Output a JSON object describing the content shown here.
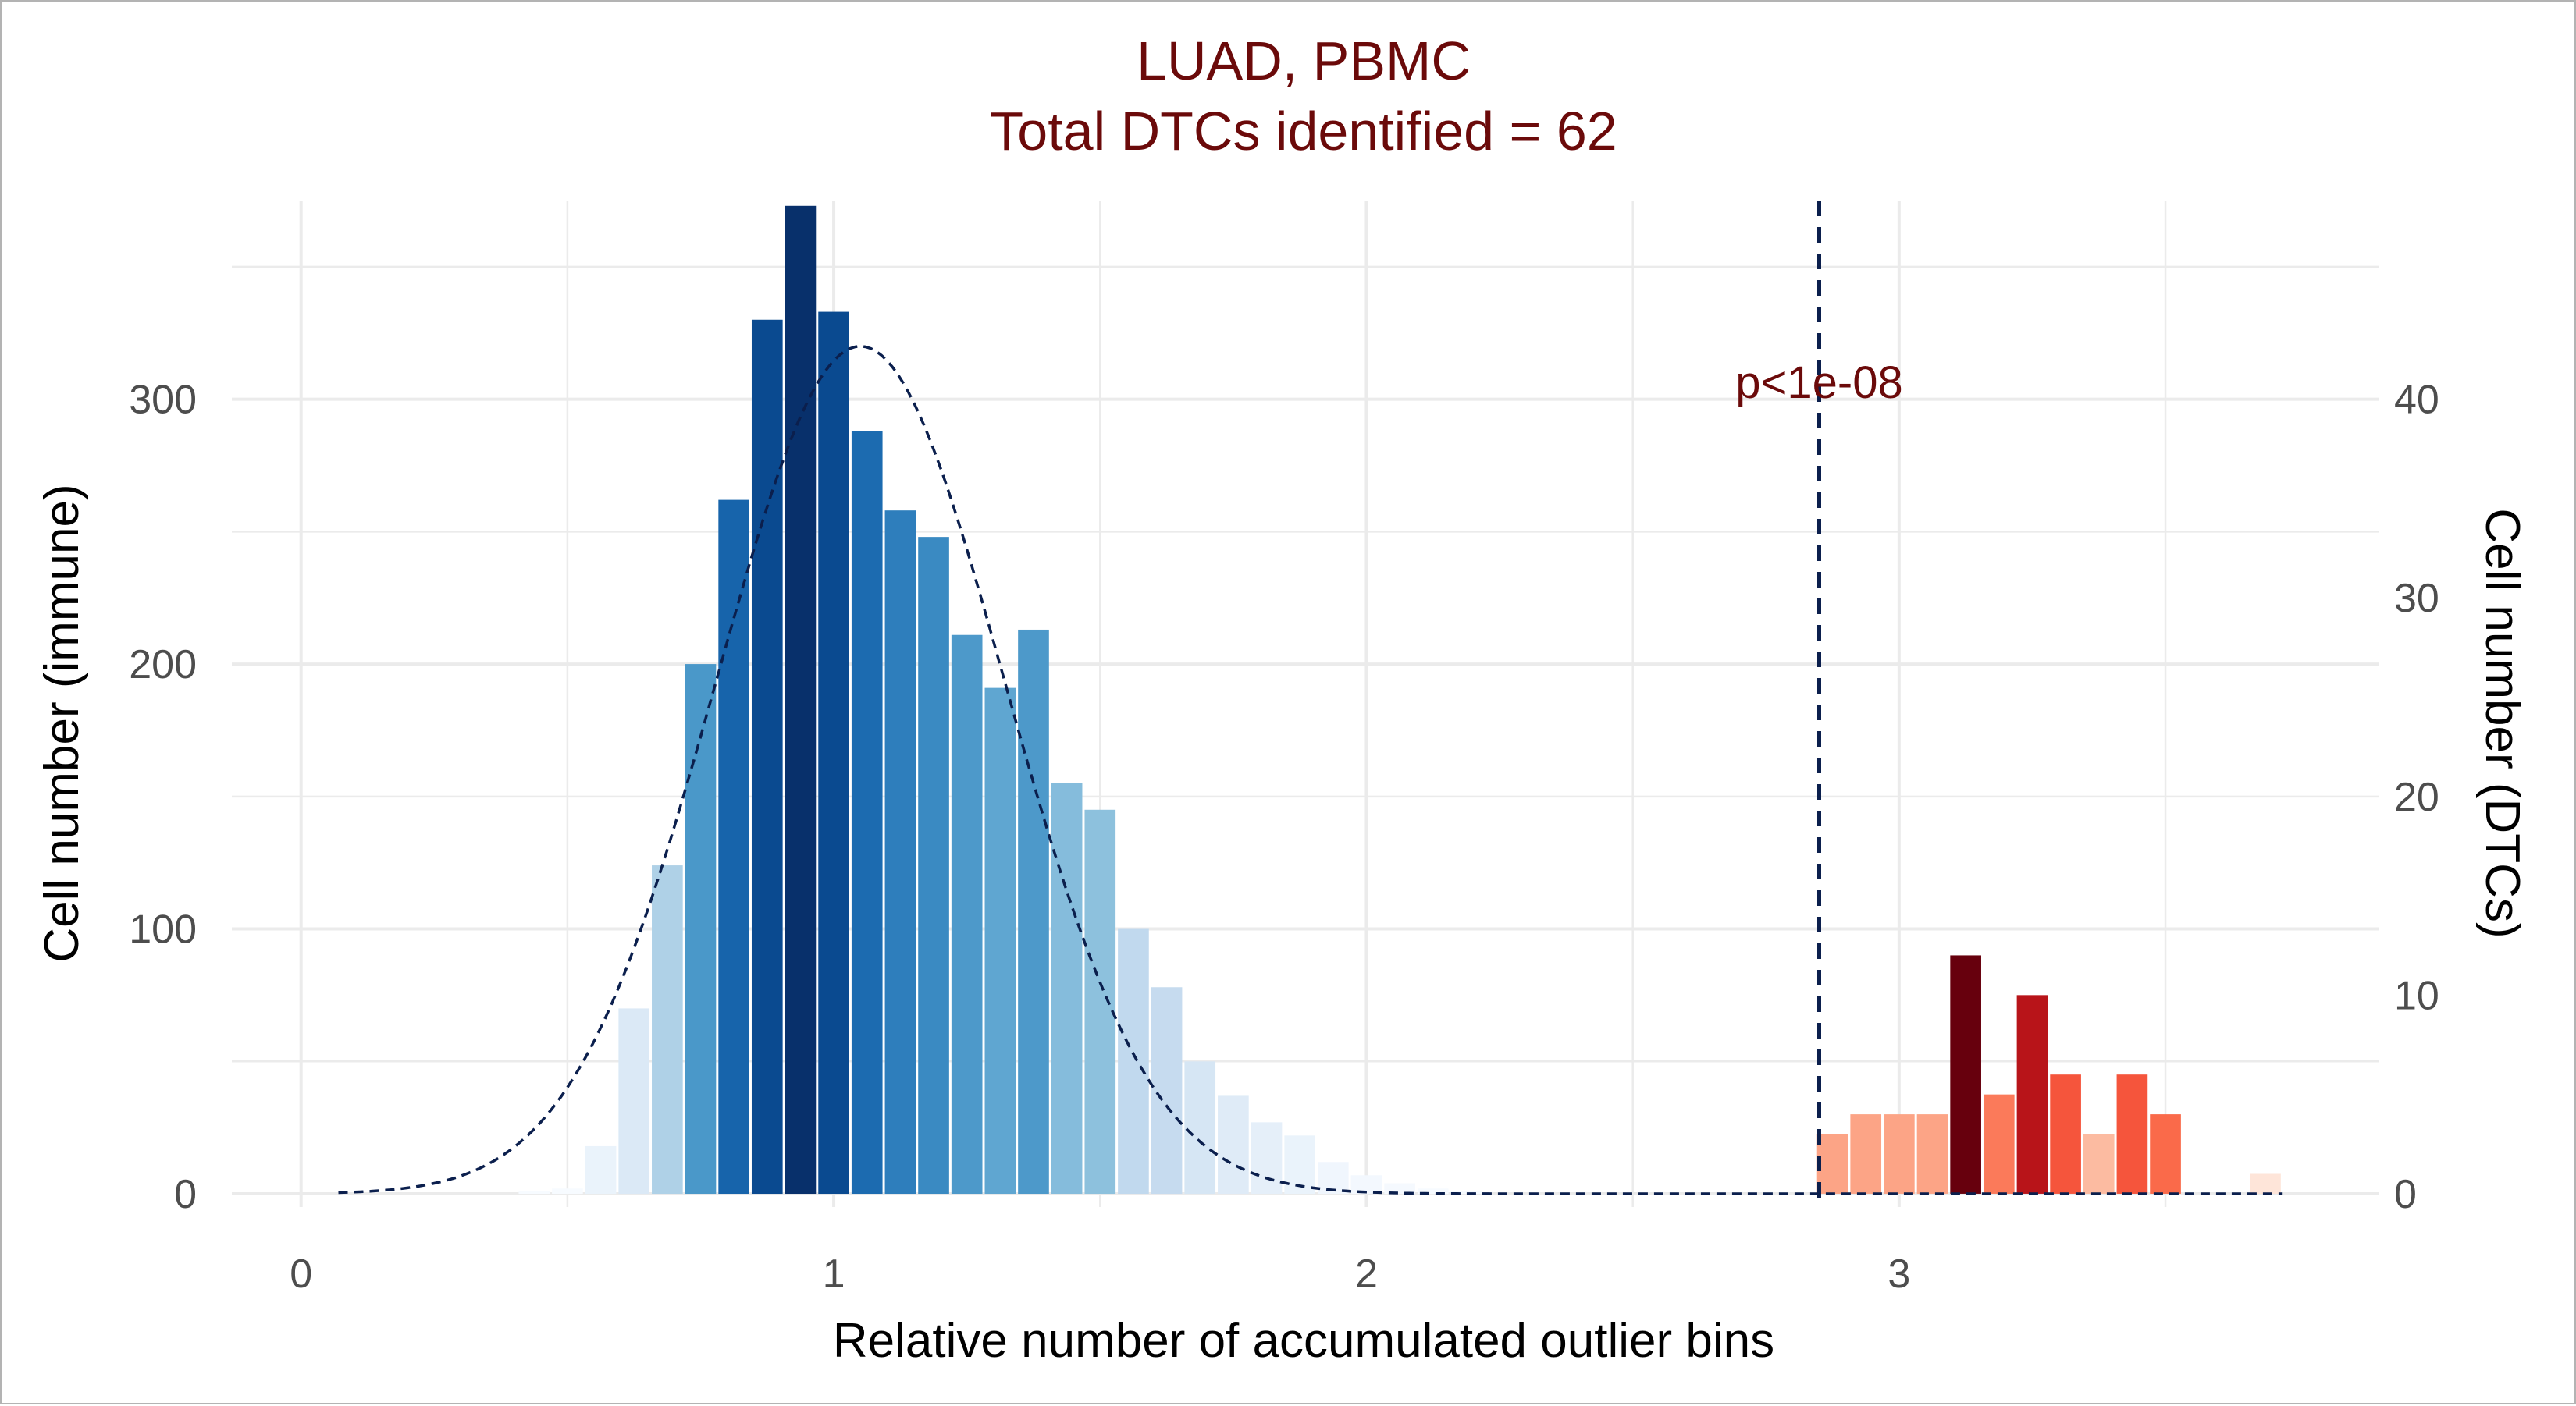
{
  "chart_data": {
    "type": "bar",
    "title": "LUAD, PBMC",
    "subtitle": "Total DTCs identified = 62",
    "xlabel": "Relative number of accumulated outlier bins",
    "ylabel_left": "Cell number (immune)",
    "ylabel_right": "Cell number (DTCs)",
    "xlim": [
      -0.13,
      3.9
    ],
    "ylim_left": [
      -5,
      375
    ],
    "ylim_right": [
      -0.67,
      50
    ],
    "x_ticks": [
      "0",
      "1",
      "2",
      "3"
    ],
    "y_left_ticks": [
      "0",
      "100",
      "200",
      "300"
    ],
    "y_right_ticks": [
      "0",
      "10",
      "20",
      "30",
      "40"
    ],
    "threshold_x": 2.85,
    "annotation": "p<1e-08",
    "grid": true,
    "colors": {
      "title": "#6b0a0a",
      "threshold": "#0b1f4d",
      "density": "#0b1f4d",
      "grid": "#ebebeb"
    },
    "series": [
      {
        "axis": "left",
        "bars": [
          {
            "x": 0.4375,
            "value": 1,
            "color": "#f7fbff"
          },
          {
            "x": 0.5,
            "value": 2,
            "color": "#f7fbff"
          },
          {
            "x": 0.5625,
            "value": 18,
            "color": "#eaf3fb"
          },
          {
            "x": 0.625,
            "value": 70,
            "color": "#dbe9f6"
          },
          {
            "x": 0.6875,
            "value": 124,
            "color": "#afd1e7"
          },
          {
            "x": 0.75,
            "value": 200,
            "color": "#4a98c9"
          },
          {
            "x": 0.8125,
            "value": 262,
            "color": "#1764ab"
          },
          {
            "x": 0.875,
            "value": 330,
            "color": "#0a4a90"
          },
          {
            "x": 0.9375,
            "value": 373,
            "color": "#08306b"
          },
          {
            "x": 1.0,
            "value": 333,
            "color": "#0a4a90"
          },
          {
            "x": 1.0625,
            "value": 288,
            "color": "#1c6bb0"
          },
          {
            "x": 1.125,
            "value": 258,
            "color": "#2e7ebc"
          },
          {
            "x": 1.1875,
            "value": 248,
            "color": "#3a8ac2"
          },
          {
            "x": 1.25,
            "value": 211,
            "color": "#4d99ca"
          },
          {
            "x": 1.3125,
            "value": 191,
            "color": "#5fa6d1"
          },
          {
            "x": 1.375,
            "value": 213,
            "color": "#4d99ca"
          },
          {
            "x": 1.4375,
            "value": 155,
            "color": "#85bcdc"
          },
          {
            "x": 1.5,
            "value": 145,
            "color": "#8dc1dd"
          },
          {
            "x": 1.5625,
            "value": 100,
            "color": "#c1d9ee"
          },
          {
            "x": 1.625,
            "value": 78,
            "color": "#c6dbef"
          },
          {
            "x": 1.6875,
            "value": 50,
            "color": "#d6e6f4"
          },
          {
            "x": 1.75,
            "value": 37,
            "color": "#dfebf7"
          },
          {
            "x": 1.8125,
            "value": 27,
            "color": "#e5eff9"
          },
          {
            "x": 1.875,
            "value": 22,
            "color": "#eaf3fb"
          },
          {
            "x": 1.9375,
            "value": 12,
            "color": "#f0f6fd"
          },
          {
            "x": 2.0,
            "value": 7,
            "color": "#f3f8fe"
          },
          {
            "x": 2.0625,
            "value": 4,
            "color": "#f5f9fe"
          },
          {
            "x": 2.125,
            "value": 2,
            "color": "#f7fbff"
          },
          {
            "x": 2.1875,
            "value": 1,
            "color": "#f7fbff"
          }
        ]
      },
      {
        "axis": "right",
        "bars": [
          {
            "x": 2.875,
            "value": 3,
            "color": "#fca486"
          },
          {
            "x": 2.9375,
            "value": 4,
            "color": "#fca486"
          },
          {
            "x": 3.0,
            "value": 4,
            "color": "#fca486"
          },
          {
            "x": 3.0625,
            "value": 4,
            "color": "#fca486"
          },
          {
            "x": 3.125,
            "value": 12,
            "color": "#67000d"
          },
          {
            "x": 3.1875,
            "value": 5,
            "color": "#fb7a5a"
          },
          {
            "x": 3.25,
            "value": 10,
            "color": "#b81419"
          },
          {
            "x": 3.3125,
            "value": 6,
            "color": "#f5553c"
          },
          {
            "x": 3.375,
            "value": 3,
            "color": "#fcbba1"
          },
          {
            "x": 3.4375,
            "value": 6,
            "color": "#f5553c"
          },
          {
            "x": 3.5,
            "value": 4,
            "color": "#fa6a4a"
          },
          {
            "x": 3.6875,
            "value": 1,
            "color": "#fee5d9"
          }
        ]
      }
    ],
    "density": {
      "axis": "left",
      "style": "dashed",
      "mean": 1.05,
      "sd": 0.27,
      "peak": 320,
      "x_range": [
        0.07,
        3.72
      ]
    }
  }
}
